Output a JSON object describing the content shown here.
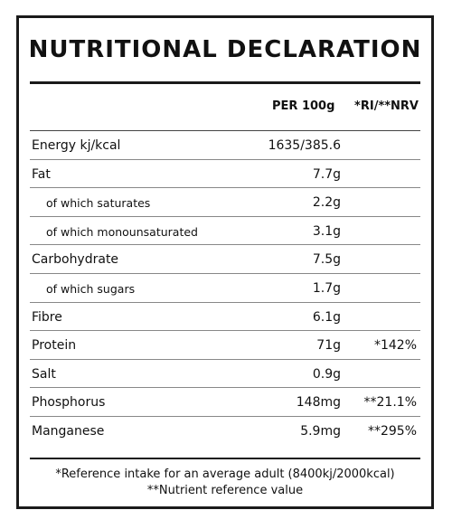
{
  "title": "NUTRITIONAL DECLARATION",
  "headers": {
    "per": "PER 100g",
    "ri": "*RI/**NRV"
  },
  "rows": [
    {
      "label": "Energy kj/kcal",
      "value": "1635/385.6",
      "ri": "",
      "sub": false
    },
    {
      "label": "Fat",
      "value": "7.7g",
      "ri": "",
      "sub": false
    },
    {
      "label": "of which saturates",
      "value": "2.2g",
      "ri": "",
      "sub": true
    },
    {
      "label": "of which monounsaturated",
      "value": "3.1g",
      "ri": "",
      "sub": true
    },
    {
      "label": "Carbohydrate",
      "value": "7.5g",
      "ri": "",
      "sub": false
    },
    {
      "label": "of which sugars",
      "value": "1.7g",
      "ri": "",
      "sub": true
    },
    {
      "label": "Fibre",
      "value": "6.1g",
      "ri": "",
      "sub": false
    },
    {
      "label": "Protein",
      "value": "71g",
      "ri": "*142%",
      "sub": false
    },
    {
      "label": "Salt",
      "value": "0.9g",
      "ri": "",
      "sub": false
    },
    {
      "label": "Phosphorus",
      "value": "148mg",
      "ri": "**21.1%",
      "sub": false
    },
    {
      "label": "Manganese",
      "value": "5.9mg",
      "ri": "**295%",
      "sub": false
    }
  ],
  "footnotes": {
    "ri": "*Reference intake for an average adult (8400kj/2000kcal)",
    "nrv": "**Nutrient reference value"
  }
}
